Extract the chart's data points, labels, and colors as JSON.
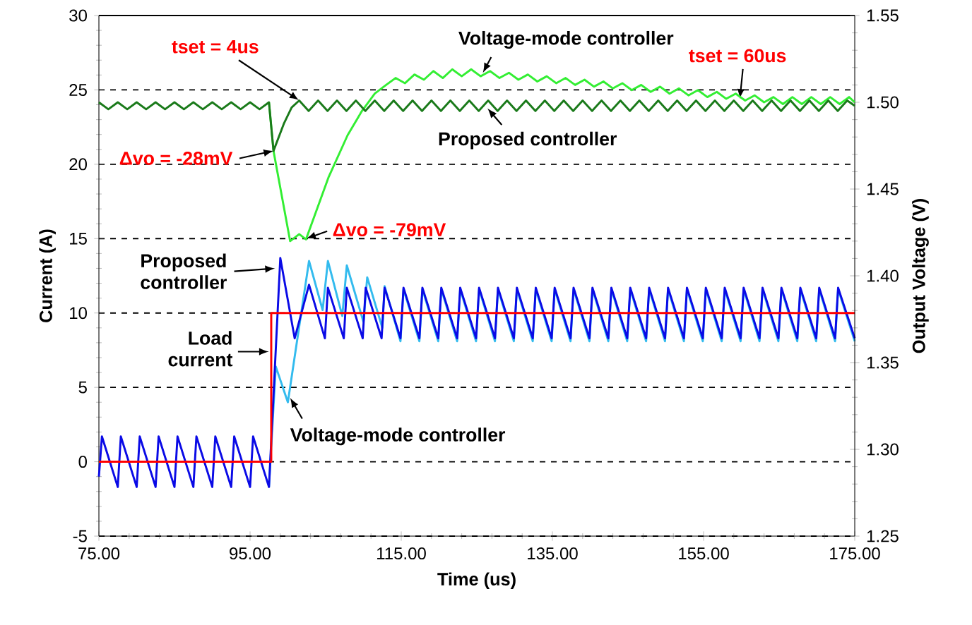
{
  "chart_data": {
    "type": "line",
    "xlabel": "Time (us)",
    "ylabel": "Current (A)",
    "y2label": "Output Voltage (V)",
    "xlim": [
      75,
      175
    ],
    "xticks": [
      {
        "value": 75,
        "label": "75.00"
      },
      {
        "value": 95,
        "label": "95.00"
      },
      {
        "value": 115,
        "label": "115.00"
      },
      {
        "value": 135,
        "label": "135.00"
      },
      {
        "value": 155,
        "label": "155.00"
      },
      {
        "value": 175,
        "label": "175.00"
      }
    ],
    "ylim": [
      -5,
      30
    ],
    "yticks": [
      -5,
      0,
      5,
      10,
      15,
      20,
      25,
      30
    ],
    "y2lim": [
      1.25,
      1.55
    ],
    "y2ticks": [
      {
        "value": 1.25,
        "label": "1.25"
      },
      {
        "value": 1.3,
        "label": "1.30"
      },
      {
        "value": 1.35,
        "label": "1.35"
      },
      {
        "value": 1.4,
        "label": "1.40"
      },
      {
        "value": 1.45,
        "label": "1.45"
      },
      {
        "value": 1.5,
        "label": "1.50"
      },
      {
        "value": 1.55,
        "label": "1.55"
      }
    ],
    "grid": "y",
    "line_style": "solid",
    "series": [
      {
        "name": "Voltage-mode controller",
        "color": "#33bbee",
        "x": [
          97.5,
          98.4,
          100.0,
          102.8,
          104.6,
          105.3,
          107.2,
          107.8,
          110.0,
          110.5,
          112.5,
          112.8,
          114.9,
          115.3,
          117.4,
          117.8,
          119.9,
          120.3,
          122.4,
          122.8,
          124.9,
          125.3,
          127.4,
          127.8,
          129.9,
          130.3,
          132.4,
          132.8,
          134.9,
          135.3,
          137.4,
          137.8,
          139.9,
          140.3,
          142.4,
          142.8,
          144.9,
          145.3,
          147.4,
          147.8,
          149.9,
          150.3,
          152.4,
          152.8,
          154.9,
          155.3,
          157.4,
          157.8,
          159.9,
          160.3,
          162.4,
          162.8,
          164.9,
          165.3,
          167.4,
          167.8,
          169.9,
          170.3,
          172.4,
          172.8,
          175
        ],
        "values": [
          -1.7,
          6.4,
          4.0,
          13.5,
          10.2,
          13.5,
          9.8,
          13.2,
          9.4,
          12.4,
          9.0,
          11.8,
          8.1,
          11.6,
          8.1,
          11.6,
          8.1,
          11.6,
          8.1,
          11.6,
          8.1,
          11.6,
          8.1,
          11.6,
          8.1,
          11.6,
          8.1,
          11.6,
          8.1,
          11.6,
          8.1,
          11.6,
          8.1,
          11.6,
          8.1,
          11.6,
          8.1,
          11.6,
          8.1,
          11.6,
          8.1,
          11.6,
          8.1,
          11.6,
          8.1,
          11.6,
          8.1,
          11.6,
          8.1,
          11.6,
          8.1,
          11.6,
          8.1,
          11.6,
          8.1,
          11.6,
          8.1,
          11.6,
          8.1,
          11.6,
          8.1
        ]
      },
      {
        "name": "Proposed controller",
        "color": "#0a0ae6",
        "x": [
          75,
          75.4,
          77.5,
          77.9,
          80,
          80.4,
          82.5,
          82.9,
          85,
          85.4,
          87.5,
          87.9,
          90,
          90.4,
          92.5,
          92.9,
          95,
          95.4,
          97.5,
          99,
          100.9,
          102.8,
          104.9,
          105.3,
          107.4,
          107.8,
          109.9,
          110.3,
          112.4,
          112.8,
          114.9,
          115.3,
          117.4,
          117.8,
          119.9,
          120.3,
          122.4,
          122.8,
          124.9,
          125.3,
          127.4,
          127.8,
          129.9,
          130.3,
          132.4,
          132.8,
          134.9,
          135.3,
          137.4,
          137.8,
          139.9,
          140.3,
          142.4,
          142.8,
          144.9,
          145.3,
          147.4,
          147.8,
          149.9,
          150.3,
          152.4,
          152.8,
          154.9,
          155.3,
          157.4,
          157.8,
          159.9,
          160.3,
          162.4,
          162.8,
          164.9,
          165.3,
          167.4,
          167.8,
          169.9,
          170.3,
          172.4,
          172.8,
          175
        ],
        "values": [
          -1.0,
          1.7,
          -1.7,
          1.7,
          -1.7,
          1.7,
          -1.7,
          1.7,
          -1.7,
          1.7,
          -1.7,
          1.7,
          -1.7,
          1.7,
          -1.7,
          1.7,
          -1.7,
          1.7,
          -1.7,
          13.7,
          8.3,
          11.9,
          8.3,
          11.7,
          8.3,
          11.7,
          8.3,
          11.7,
          8.3,
          11.7,
          8.3,
          11.7,
          8.3,
          11.7,
          8.3,
          11.7,
          8.3,
          11.7,
          8.3,
          11.7,
          8.3,
          11.7,
          8.3,
          11.7,
          8.3,
          11.7,
          8.3,
          11.7,
          8.3,
          11.7,
          8.3,
          11.7,
          8.3,
          11.7,
          8.3,
          11.7,
          8.3,
          11.7,
          8.3,
          11.7,
          8.3,
          11.7,
          8.3,
          11.7,
          8.3,
          11.7,
          8.3,
          11.7,
          8.3,
          11.7,
          8.3,
          11.7,
          8.3,
          11.7,
          8.3,
          11.7,
          8.3,
          11.7,
          8.3
        ]
      },
      {
        "name": "Load current",
        "color": "#ff0000",
        "x": [
          75,
          97.8,
          97.8,
          175
        ],
        "values": [
          0,
          0,
          10,
          10
        ]
      },
      {
        "name": "Voltage-mode controller",
        "color": "#33ee33",
        "axis": "y2",
        "x": [
          97.5,
          98.1,
          100.3,
          101.5,
          102.4,
          105.4,
          107.9,
          109.8,
          111.5,
          113,
          114.25,
          115.5,
          116.75,
          118,
          119.25,
          120.5,
          121.75,
          123,
          124.25,
          125.5,
          126.75,
          128,
          129.25,
          130.5,
          131.75,
          133,
          134.25,
          135.5,
          136.75,
          138,
          139.25,
          140.5,
          141.75,
          143,
          144.25,
          145.5,
          146.75,
          148,
          149.25,
          150.5,
          151.75,
          153,
          154.25,
          155.5,
          156.75,
          158,
          159.25,
          160.5,
          161.75,
          163,
          164.25,
          165.5,
          166.75,
          168,
          169.25,
          170.5,
          171.75,
          173,
          174.25,
          175
        ],
        "values": [
          1.5,
          1.472,
          1.42,
          1.424,
          1.421,
          1.457,
          1.481,
          1.495,
          1.505,
          1.51,
          1.514,
          1.511,
          1.516,
          1.513,
          1.518,
          1.514,
          1.519,
          1.515,
          1.519,
          1.515,
          1.518,
          1.514,
          1.517,
          1.513,
          1.516,
          1.512,
          1.515,
          1.511,
          1.514,
          1.51,
          1.513,
          1.509,
          1.512,
          1.508,
          1.511,
          1.507,
          1.51,
          1.506,
          1.509,
          1.505,
          1.508,
          1.504,
          1.507,
          1.503,
          1.506,
          1.502,
          1.505,
          1.501,
          1.504,
          1.5,
          1.503,
          1.499,
          1.503,
          1.499,
          1.503,
          1.499,
          1.503,
          1.499,
          1.503,
          1.5
        ]
      },
      {
        "name": "Proposed controller",
        "color": "#1a7a1a",
        "axis": "y2",
        "x": [
          75,
          76.25,
          77.5,
          78.75,
          80,
          81.25,
          82.5,
          83.75,
          85,
          86.25,
          87.5,
          88.75,
          90,
          91.25,
          92.5,
          93.75,
          95,
          96.25,
          97.5,
          98.1,
          99.5,
          100.5,
          101.5,
          102.75,
          104,
          105.25,
          106.5,
          107.75,
          109,
          110.25,
          111.5,
          112.75,
          114,
          115.25,
          116.5,
          117.75,
          119,
          120.25,
          121.5,
          122.75,
          124,
          125.25,
          126.5,
          127.75,
          129,
          130.25,
          131.5,
          132.75,
          134,
          135.25,
          136.5,
          137.75,
          139,
          140.25,
          141.5,
          142.75,
          144,
          145.25,
          146.5,
          147.75,
          149,
          150.25,
          151.5,
          152.75,
          154,
          155.25,
          156.5,
          157.75,
          159,
          160.25,
          161.5,
          162.75,
          164,
          165.25,
          166.5,
          167.75,
          169,
          170.25,
          171.5,
          172.75,
          174,
          175
        ],
        "values": [
          1.5,
          1.496,
          1.5,
          1.496,
          1.5,
          1.496,
          1.5,
          1.496,
          1.5,
          1.496,
          1.5,
          1.496,
          1.5,
          1.496,
          1.5,
          1.496,
          1.5,
          1.496,
          1.5,
          1.472,
          1.488,
          1.497,
          1.501,
          1.495,
          1.501,
          1.495,
          1.501,
          1.495,
          1.501,
          1.495,
          1.501,
          1.495,
          1.501,
          1.495,
          1.501,
          1.495,
          1.501,
          1.495,
          1.501,
          1.495,
          1.501,
          1.495,
          1.501,
          1.495,
          1.501,
          1.495,
          1.501,
          1.495,
          1.501,
          1.495,
          1.501,
          1.495,
          1.501,
          1.495,
          1.501,
          1.495,
          1.501,
          1.495,
          1.501,
          1.495,
          1.501,
          1.495,
          1.501,
          1.495,
          1.501,
          1.495,
          1.501,
          1.495,
          1.501,
          1.495,
          1.501,
          1.495,
          1.501,
          1.495,
          1.501,
          1.495,
          1.501,
          1.495,
          1.501,
          1.495,
          1.501,
          1.498
        ]
      }
    ],
    "annotations": [
      {
        "text": "tset = 4us",
        "x": 101.5,
        "y": 24.3
      },
      {
        "text": "Δvo = -28mV",
        "x": 98.1,
        "y": 20.9
      },
      {
        "text": "Δvo = -79mV",
        "x": 102.4,
        "y": 15.0
      },
      {
        "text": "tset = 60us",
        "x": 159.8,
        "y": 24.4
      }
    ]
  }
}
